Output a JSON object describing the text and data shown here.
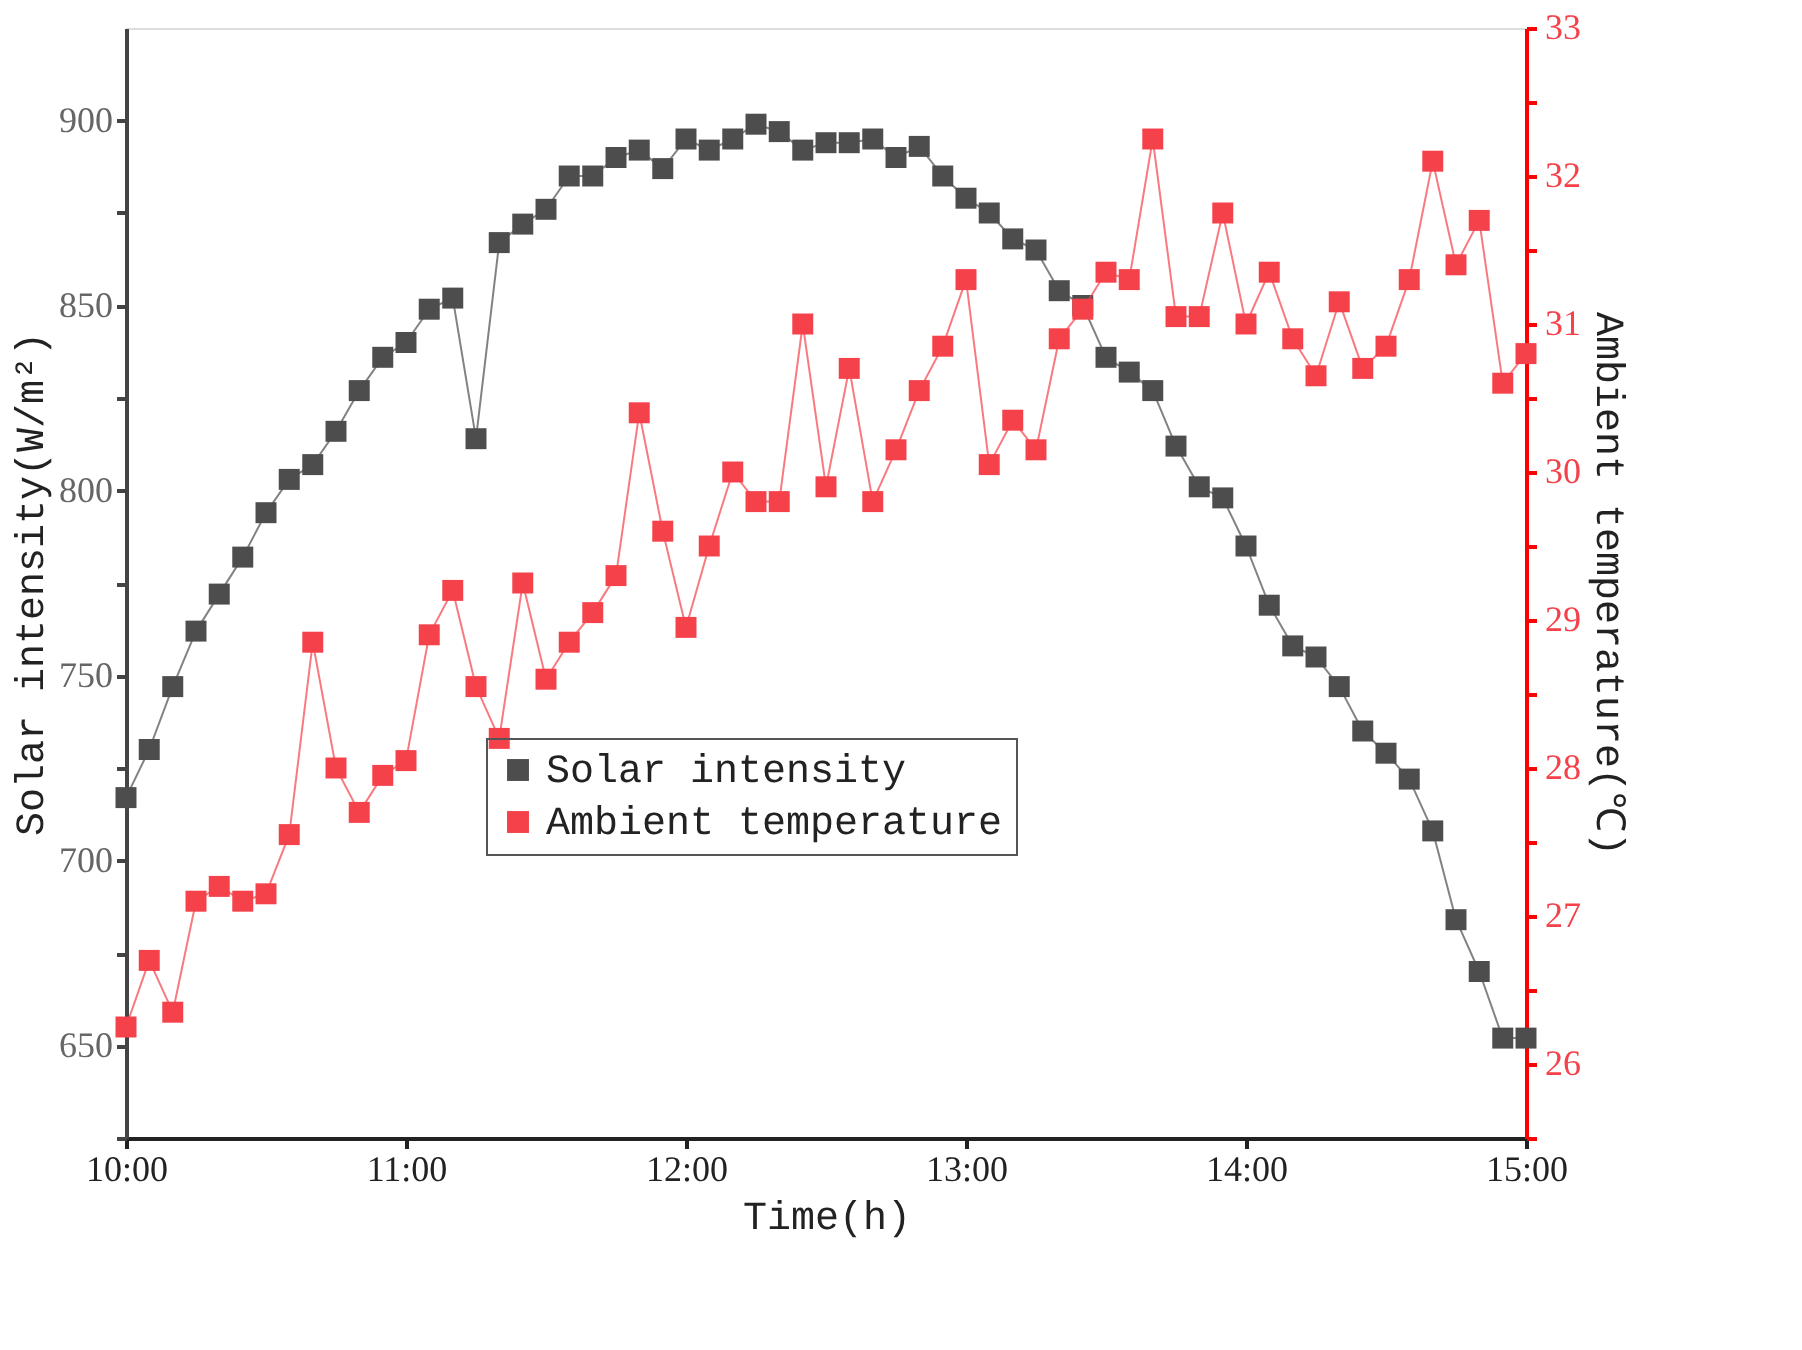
{
  "chart_data": {
    "type": "line",
    "xlabel": "Time(h)",
    "ylabel": "Solar intensity(W/m²)",
    "y2label": "Ambient temperature(℃)",
    "x": [
      10,
      10.083,
      10.167,
      10.25,
      10.333,
      10.417,
      10.5,
      10.583,
      10.667,
      10.75,
      10.833,
      10.917,
      11,
      11.083,
      11.167,
      11.25,
      11.333,
      11.417,
      11.5,
      11.583,
      11.667,
      11.75,
      11.833,
      11.917,
      12,
      12.083,
      12.167,
      12.25,
      12.333,
      12.417,
      12.5,
      12.583,
      12.667,
      12.75,
      12.833,
      12.917,
      13,
      13.083,
      13.167,
      13.25,
      13.333,
      13.417,
      13.5,
      13.583,
      13.667,
      13.75,
      13.833,
      13.917,
      14,
      14.083,
      14.167,
      14.25,
      14.333,
      14.417,
      14.5,
      14.583,
      14.667,
      14.75,
      14.833,
      14.917,
      15
    ],
    "series": [
      {
        "name": "Solar intensity",
        "color": "#4d4d4d",
        "values": [
          717,
          730,
          747,
          762,
          772,
          782,
          794,
          803,
          807,
          816,
          827,
          836,
          840,
          849,
          852,
          814,
          867,
          872,
          876,
          885,
          885,
          890,
          892,
          887,
          895,
          892,
          895,
          899,
          897,
          892,
          894,
          894,
          895,
          890,
          893,
          885,
          879,
          875,
          868,
          865,
          854,
          850,
          836,
          832,
          827,
          812,
          801,
          798,
          785,
          769,
          758,
          755,
          747,
          735,
          729,
          722,
          708,
          684,
          670,
          652,
          652
        ]
      },
      {
        "name": "Ambient temperature",
        "color": "#f5414a",
        "axis": "y2",
        "values": [
          26.25,
          26.7,
          26.35,
          27.1,
          27.2,
          27.1,
          27.15,
          27.55,
          28.85,
          28.0,
          27.7,
          27.95,
          28.05,
          28.9,
          29.2,
          28.55,
          28.2,
          29.25,
          28.6,
          28.85,
          29.05,
          29.3,
          30.4,
          29.6,
          28.95,
          29.5,
          30.0,
          29.8,
          29.8,
          31.0,
          29.9,
          30.7,
          29.8,
          30.15,
          30.55,
          30.85,
          31.3,
          30.05,
          30.35,
          30.15,
          30.9,
          31.1,
          31.35,
          31.3,
          32.25,
          31.05,
          31.05,
          31.75,
          31.0,
          31.35,
          30.9,
          30.65,
          31.15,
          30.7,
          30.85,
          31.3,
          32.1,
          31.4,
          31.7,
          30.6,
          30.8
        ]
      }
    ],
    "xlim": [
      10,
      15
    ],
    "xticks": [
      {
        "value": 10,
        "label": "10:00"
      },
      {
        "value": 11,
        "label": "11:00"
      },
      {
        "value": 12,
        "label": "12:00"
      },
      {
        "value": 13,
        "label": "13:00"
      },
      {
        "value": 14,
        "label": "14:00"
      },
      {
        "value": 15,
        "label": "15:00"
      }
    ],
    "ylim": [
      625,
      925
    ],
    "yticks": [
      {
        "value": 625,
        "label": null
      },
      650,
      {
        "value": 675,
        "label": null
      },
      700,
      {
        "value": 725,
        "label": null
      },
      750,
      {
        "value": 775,
        "label": null
      },
      800,
      {
        "value": 825,
        "label": null
      },
      850,
      {
        "value": 875,
        "label": null
      },
      900
    ],
    "y2lim": [
      25.5,
      33
    ],
    "y2ticks": [
      {
        "value": 25.5,
        "label": null
      },
      26,
      {
        "value": 26.5,
        "label": null
      },
      27,
      {
        "value": 27.5,
        "label": null
      },
      28,
      {
        "value": 28.5,
        "label": null
      },
      29,
      {
        "value": 29.5,
        "label": null
      },
      30,
      {
        "value": 30.5,
        "label": null
      },
      31,
      {
        "value": 31.5,
        "label": null
      },
      32,
      {
        "value": 32.5,
        "label": null
      },
      33
    ],
    "grid": false,
    "legend": "bottom",
    "marker": "square",
    "line_style": "solid"
  }
}
